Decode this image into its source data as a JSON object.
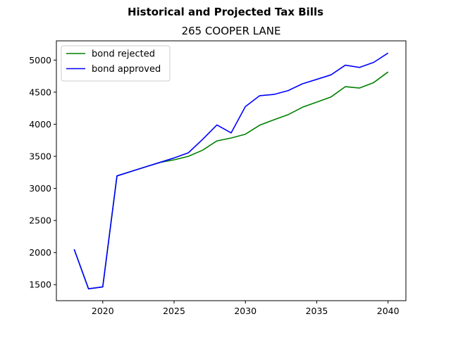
{
  "chart_data": {
    "type": "line",
    "title": "Historical and Projected Tax Bills",
    "subtitle": "265 COOPER LANE",
    "xlabel": "",
    "ylabel": "",
    "xlim": [
      2016.75,
      2041.25
    ],
    "ylim": [
      1250,
      5300
    ],
    "xticks": [
      2020,
      2025,
      2030,
      2035,
      2040
    ],
    "yticks": [
      1500,
      2000,
      2500,
      3000,
      3500,
      4000,
      4500,
      5000
    ],
    "grid": false,
    "legend_position": "upper-left",
    "x": [
      2018,
      2019,
      2020,
      2021,
      2022,
      2023,
      2024,
      2025,
      2026,
      2027,
      2028,
      2029,
      2030,
      2031,
      2032,
      2033,
      2034,
      2035,
      2036,
      2037,
      2038,
      2039,
      2040
    ],
    "series": [
      {
        "name": "bond rejected",
        "color": "#008000",
        "values": [
          2050,
          1435,
          1465,
          3195,
          3265,
          3335,
          3405,
          3445,
          3500,
          3595,
          3740,
          3785,
          3845,
          3985,
          4070,
          4150,
          4265,
          4345,
          4425,
          4585,
          4565,
          4650,
          4815
        ]
      },
      {
        "name": "bond approved",
        "color": "#0000ff",
        "values": [
          2050,
          1435,
          1465,
          3195,
          3265,
          3335,
          3405,
          3475,
          3555,
          3765,
          3990,
          3865,
          4275,
          4445,
          4465,
          4525,
          4630,
          4700,
          4770,
          4920,
          4885,
          4965,
          5110
        ]
      }
    ]
  }
}
